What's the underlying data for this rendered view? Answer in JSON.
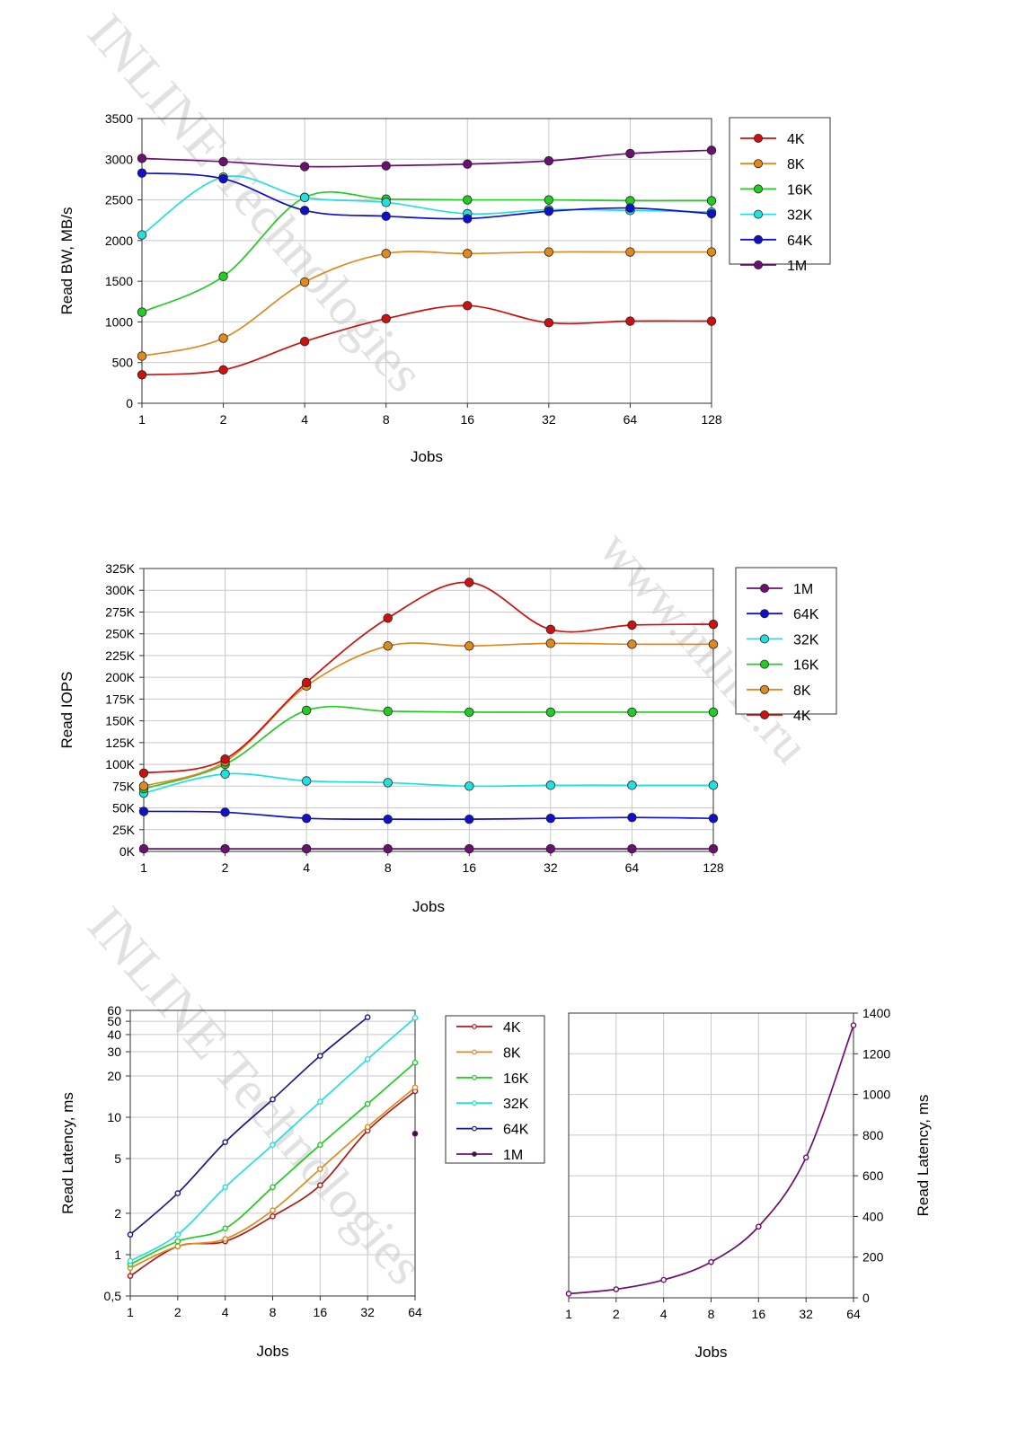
{
  "watermarks": [
    "INLINE Technologies",
    "www.inline.ru",
    "INLINE Technologies"
  ],
  "chart_data": [
    {
      "type": "line",
      "xscale": "log2",
      "x": [
        1,
        2,
        4,
        8,
        16,
        32,
        64,
        128
      ],
      "x_tick_labels": [
        "1",
        "2",
        "4",
        "8",
        "16",
        "32",
        "64",
        "128"
      ],
      "xlabel": "Jobs",
      "ylabel": "Read BW, MB/s",
      "ylim": [
        0,
        3500
      ],
      "y_ticks": [
        0,
        500,
        1000,
        1500,
        2000,
        2500,
        3000,
        3500
      ],
      "y_tick_labels": [
        "0",
        "500",
        "1000",
        "1500",
        "2000",
        "2500",
        "3000",
        "3500"
      ],
      "grid": true,
      "legend_position": "right",
      "legend_order": [
        "4K",
        "8K",
        "16K",
        "32K",
        "64K",
        "1M"
      ],
      "marker": "large",
      "series": [
        {
          "name": "4K",
          "color": "#cc1111",
          "values": [
            350,
            410,
            760,
            1040,
            1200,
            990,
            1010,
            1010
          ]
        },
        {
          "name": "8K",
          "color": "#e08a1e",
          "values": [
            580,
            800,
            1490,
            1840,
            1840,
            1860,
            1860,
            1860
          ]
        },
        {
          "name": "16K",
          "color": "#22cc22",
          "values": [
            1120,
            1560,
            2530,
            2510,
            2500,
            2500,
            2490,
            2490
          ]
        },
        {
          "name": "32K",
          "color": "#22e0e0",
          "values": [
            2070,
            2780,
            2530,
            2470,
            2330,
            2380,
            2370,
            2350
          ]
        },
        {
          "name": "64K",
          "color": "#1010cc",
          "values": [
            2830,
            2760,
            2370,
            2300,
            2270,
            2360,
            2400,
            2330
          ]
        },
        {
          "name": "1M",
          "color": "#6a1070",
          "values": [
            3010,
            2970,
            2910,
            2920,
            2940,
            2980,
            3070,
            3110
          ]
        }
      ]
    },
    {
      "type": "line",
      "xscale": "log2",
      "x": [
        1,
        2,
        4,
        8,
        16,
        32,
        64,
        128
      ],
      "x_tick_labels": [
        "1",
        "2",
        "4",
        "8",
        "16",
        "32",
        "64",
        "128"
      ],
      "xlabel": "Jobs",
      "ylabel": "Read IOPS",
      "ylim": [
        0,
        325000
      ],
      "y_ticks": [
        0,
        25000,
        50000,
        75000,
        100000,
        125000,
        150000,
        175000,
        200000,
        225000,
        250000,
        275000,
        300000,
        325000
      ],
      "y_tick_labels": [
        "0K",
        "25K",
        "50K",
        "75K",
        "100K",
        "125K",
        "150K",
        "175K",
        "200K",
        "225K",
        "250K",
        "275K",
        "300K",
        "325K"
      ],
      "grid": true,
      "legend_position": "right",
      "legend_order": [
        "1M",
        "64K",
        "32K",
        "16K",
        "8K",
        "4K"
      ],
      "marker": "large",
      "series": [
        {
          "name": "1M",
          "color": "#6a1070",
          "values": [
            3000,
            3000,
            3000,
            3000,
            3000,
            3000,
            3000,
            3000
          ]
        },
        {
          "name": "64K",
          "color": "#1010cc",
          "values": [
            46000,
            45000,
            38000,
            37000,
            37000,
            38000,
            39000,
            38000
          ]
        },
        {
          "name": "32K",
          "color": "#22e0e0",
          "values": [
            67000,
            89000,
            81000,
            79000,
            75000,
            76000,
            76000,
            76000
          ]
        },
        {
          "name": "16K",
          "color": "#22cc22",
          "values": [
            72000,
            100000,
            162000,
            161000,
            160000,
            160000,
            160000,
            160000
          ]
        },
        {
          "name": "8K",
          "color": "#e08a1e",
          "values": [
            75000,
            103000,
            190000,
            236000,
            236000,
            239000,
            238000,
            238000
          ]
        },
        {
          "name": "4K",
          "color": "#cc1111",
          "values": [
            90000,
            106000,
            194000,
            268000,
            309000,
            255000,
            260000,
            261000
          ]
        }
      ]
    },
    {
      "type": "line",
      "xscale": "log2",
      "yscale": "log",
      "x": [
        1,
        2,
        4,
        8,
        16,
        32,
        64
      ],
      "x_tick_labels": [
        "1",
        "2",
        "4",
        "8",
        "16",
        "32",
        "64"
      ],
      "xlabel": "Jobs",
      "ylabel": "Read Latency, ms",
      "ylim": [
        0.5,
        60
      ],
      "y_ticks": [
        0.5,
        1,
        2,
        5,
        10,
        20,
        30,
        40,
        50,
        60
      ],
      "y_tick_labels": [
        "0,5",
        "1",
        "2",
        "5",
        "10",
        "20",
        "30",
        "40",
        "50",
        "60"
      ],
      "grid": true,
      "legend_position": "right",
      "legend_order": [
        "4K",
        "8K",
        "16K",
        "32K",
        "64K",
        "1M"
      ],
      "marker": "small",
      "series": [
        {
          "name": "4K",
          "color": "#b01818",
          "values": [
            0.7,
            1.15,
            1.25,
            1.9,
            3.2,
            8.0,
            15.5
          ]
        },
        {
          "name": "8K",
          "color": "#e08a1e",
          "values": [
            0.8,
            1.15,
            1.3,
            2.1,
            4.2,
            8.5,
            16.5
          ]
        },
        {
          "name": "16K",
          "color": "#22cc22",
          "values": [
            0.85,
            1.25,
            1.55,
            3.1,
            6.3,
            12.5,
            25
          ]
        },
        {
          "name": "32K",
          "color": "#22e0e0",
          "values": [
            0.9,
            1.4,
            3.1,
            6.3,
            13,
            26.5,
            53
          ]
        },
        {
          "name": "64K",
          "color": "#1a1a88",
          "values": [
            1.4,
            2.8,
            6.6,
            13.5,
            28,
            53.5,
            null
          ]
        },
        {
          "name": "1M",
          "color": "#6a1070",
          "values": [
            null,
            null,
            null,
            null,
            null,
            null,
            7.6
          ]
        }
      ]
    },
    {
      "type": "line",
      "xscale": "log2",
      "x": [
        1,
        2,
        4,
        8,
        16,
        32,
        64
      ],
      "x_tick_labels": [
        "1",
        "2",
        "4",
        "8",
        "16",
        "32",
        "64"
      ],
      "xlabel": "Jobs",
      "ylabel": "Read Latency, ms",
      "y_axis_side": "right",
      "ylim": [
        0,
        1400
      ],
      "y_ticks": [
        0,
        200,
        400,
        600,
        800,
        1000,
        1200,
        1400
      ],
      "y_tick_labels": [
        "0",
        "200",
        "400",
        "600",
        "800",
        "1000",
        "1200",
        "1400"
      ],
      "grid": true,
      "marker": "small",
      "series": [
        {
          "color": "#6a1070",
          "values": [
            20,
            42,
            88,
            176,
            350,
            690,
            1340
          ]
        }
      ]
    }
  ]
}
